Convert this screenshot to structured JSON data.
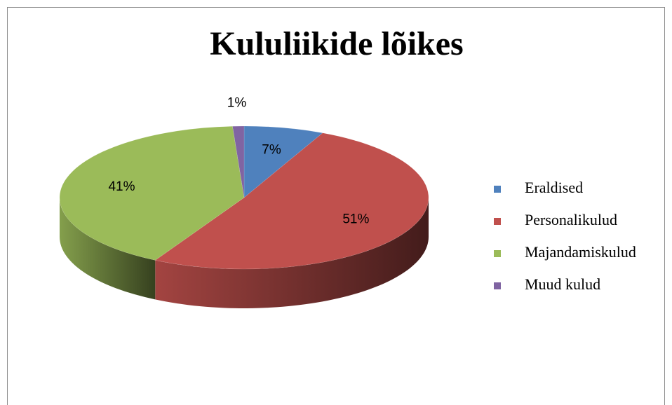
{
  "chart_data": {
    "type": "pie",
    "title": "Kululiikide lõikes",
    "categories": [
      "Eraldised",
      "Personalikulud",
      "Majandamiskulud",
      "Muud kulud"
    ],
    "values": [
      7,
      51,
      41,
      1
    ],
    "value_labels": [
      "7%",
      "51%",
      "41%",
      "1%"
    ],
    "colors": [
      "#4f81bd",
      "#c0504d",
      "#9bbb59",
      "#8064a2"
    ],
    "legend": "right"
  }
}
